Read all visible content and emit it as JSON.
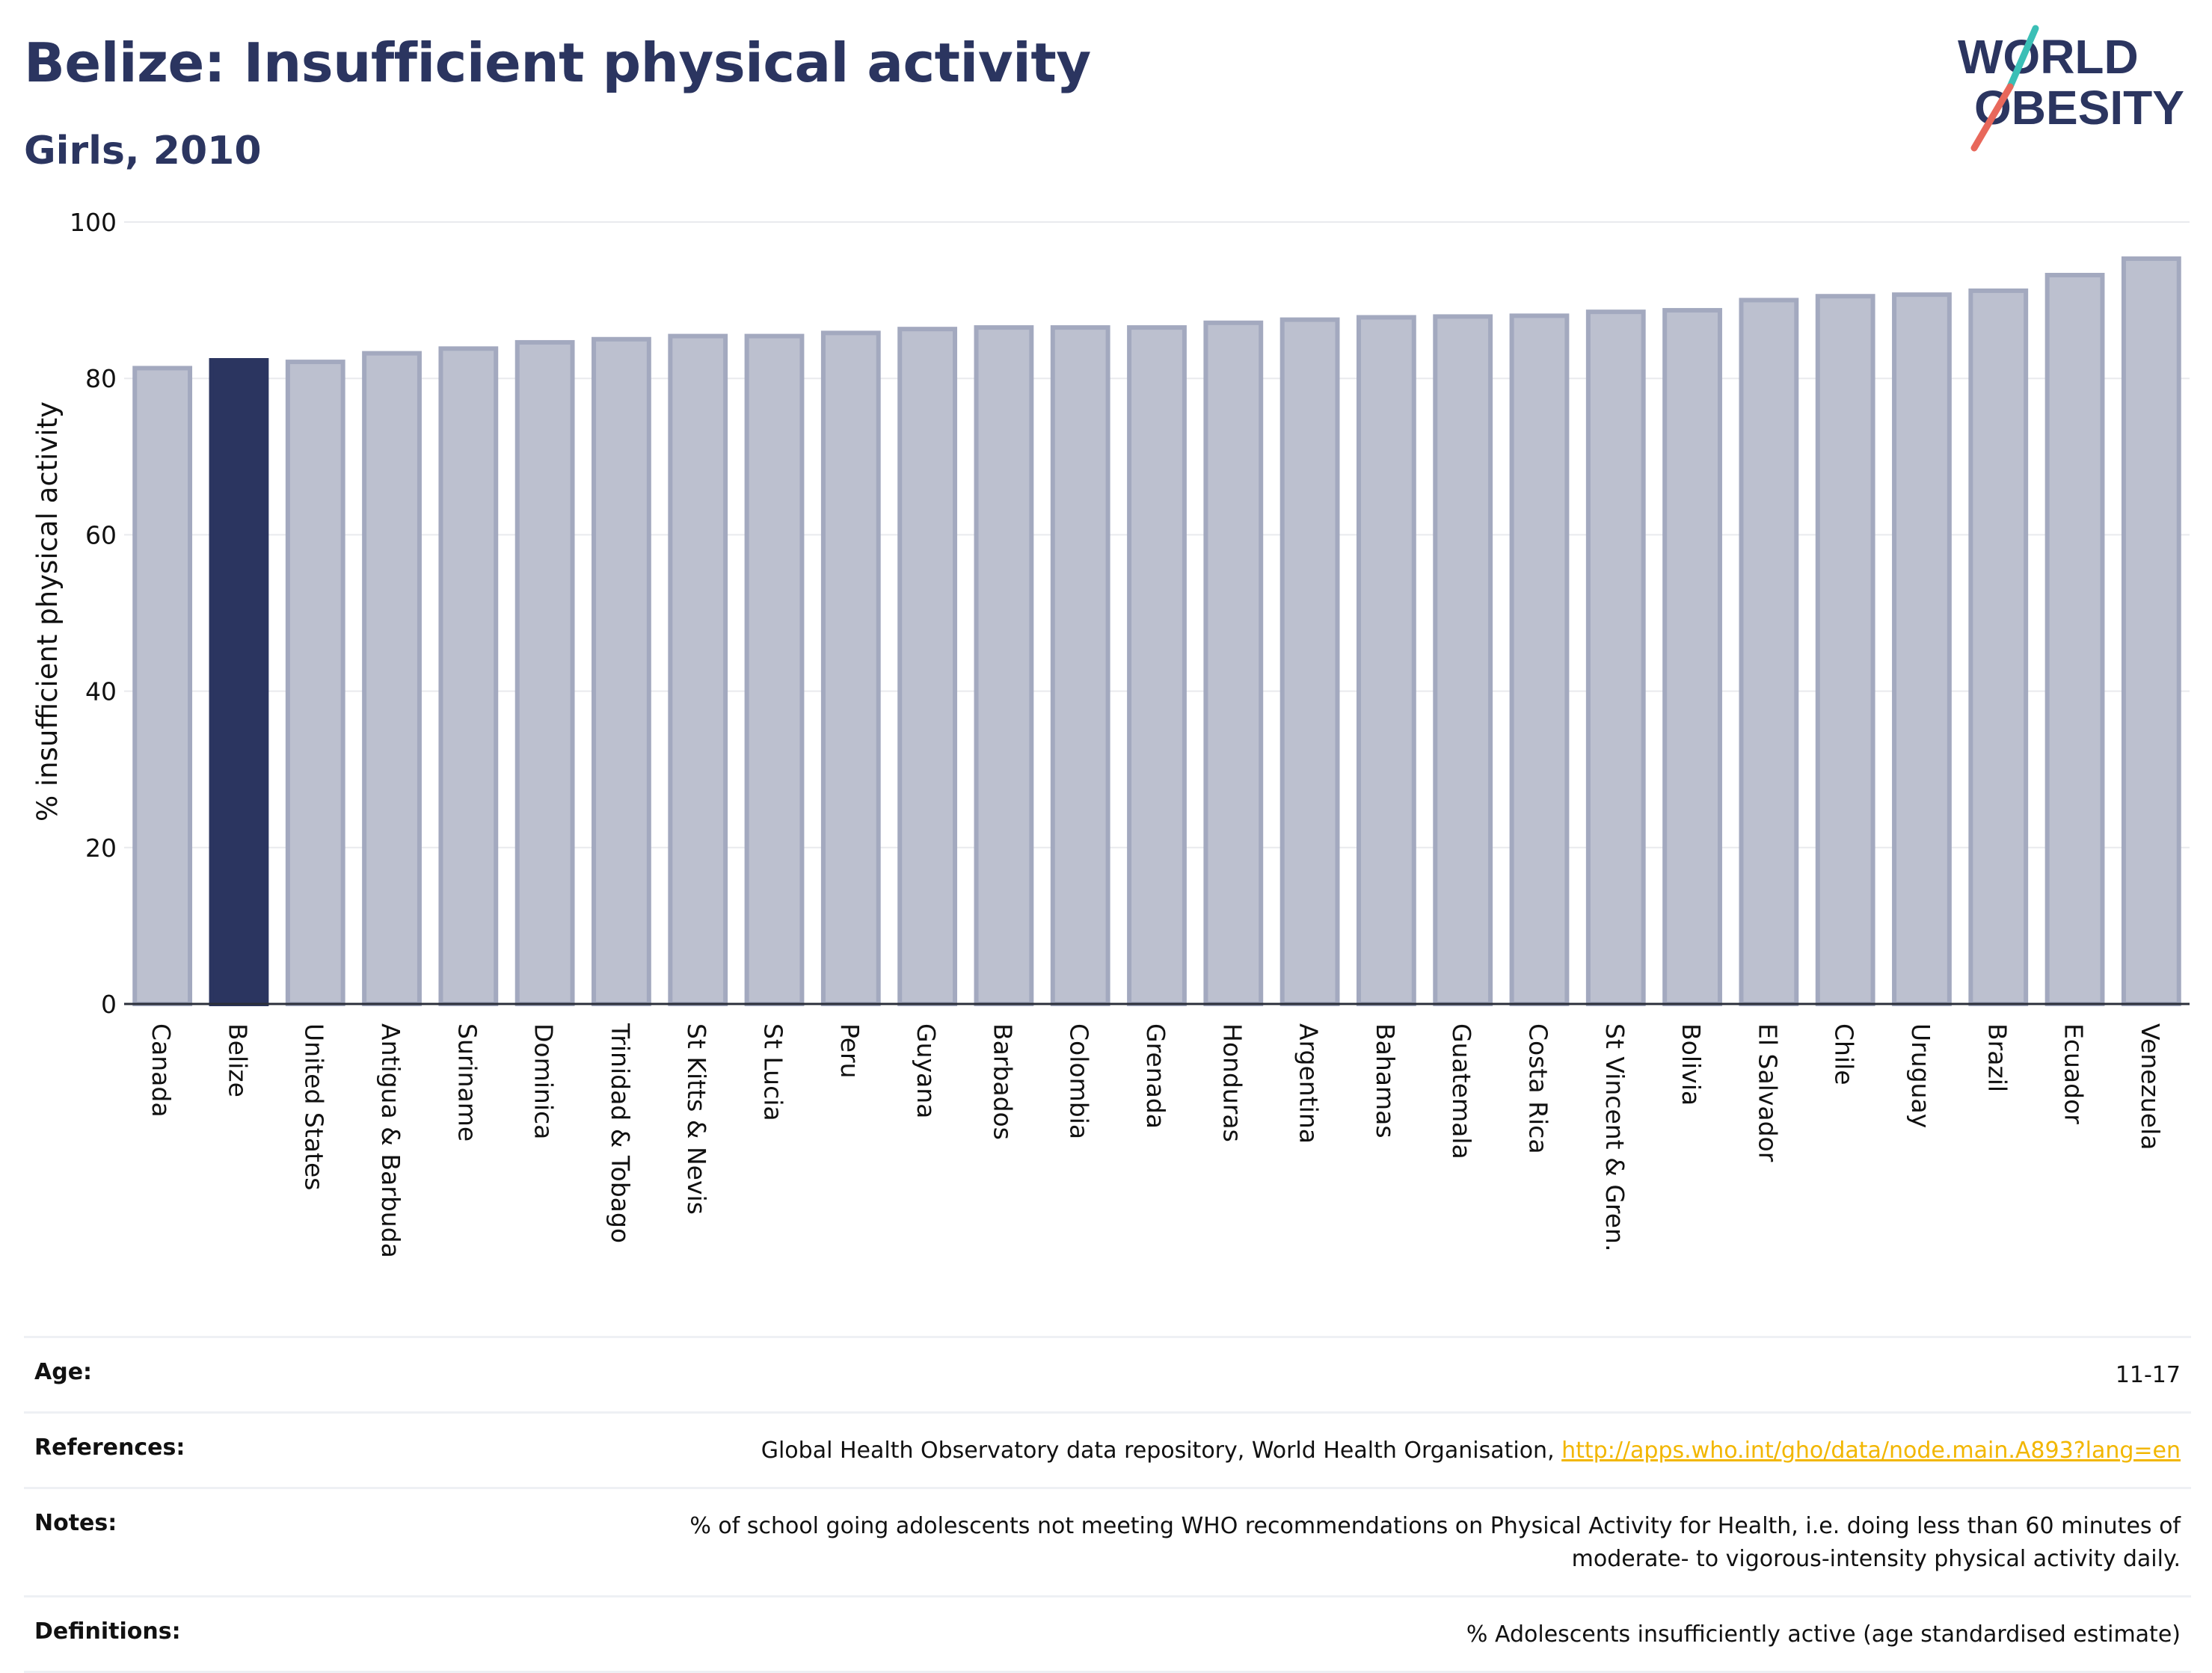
{
  "title": "Belize: Insufficient physical activity",
  "subtitle": "Girls, 2010",
  "colors": {
    "title": "#2b3560",
    "highlight_bar": "#2b3560",
    "other_bar_fill": "#bcc0cf",
    "other_bar_stroke": "#a3a9bf",
    "logo_teal": "#3bbfb6",
    "logo_coral": "#e8685b",
    "link": "#f2b600"
  },
  "logo": {
    "line1": "WORLD",
    "line2": "OBESITY"
  },
  "chart_data": {
    "type": "bar",
    "categories": [
      "Canada",
      "Belize",
      "United States",
      "Antigua & Barbuda",
      "Suriname",
      "Dominica",
      "Trinidad & Tobago",
      "St Kitts & Nevis",
      "St Lucia",
      "Peru",
      "Guyana",
      "Barbados",
      "Colombia",
      "Grenada",
      "Honduras",
      "Argentina",
      "Bahamas",
      "Guatemala",
      "Costa Rica",
      "St Vincent & Gren.",
      "Bolivia",
      "El Salvador",
      "Chile",
      "Uruguay",
      "Brazil",
      "Ecuador",
      "Venezuela"
    ],
    "values": [
      81.6,
      82.6,
      82.4,
      83.5,
      84.1,
      84.9,
      85.3,
      85.7,
      85.7,
      86.1,
      86.6,
      86.8,
      86.8,
      86.8,
      87.4,
      87.8,
      88.1,
      88.2,
      88.3,
      88.8,
      89.0,
      90.3,
      90.8,
      91.0,
      91.5,
      93.5,
      95.6
    ],
    "highlight": "Belize",
    "xlabel": "",
    "ylabel": "% insufficient physical activity",
    "ylim": [
      0,
      100
    ],
    "yticks": [
      0,
      20,
      40,
      60,
      80,
      100
    ],
    "grid": true
  },
  "meta": {
    "age_label": "Age:",
    "age_value": "11-17",
    "references_label": "References:",
    "references_text": "Global Health Observatory data repository, World Health Organisation, ",
    "references_link": "http://apps.who.int/gho/data/node.main.A893?lang=en",
    "notes_label": "Notes:",
    "notes_line1": "% of school going adolescents not meeting WHO recommendations on Physical Activity for Health, i.e. doing less than 60 minutes of",
    "notes_line2": "moderate- to vigorous-intensity physical activity daily.",
    "definitions_label": "Definitions:",
    "definitions_value": "% Adolescents insufficiently active (age standardised estimate)"
  }
}
